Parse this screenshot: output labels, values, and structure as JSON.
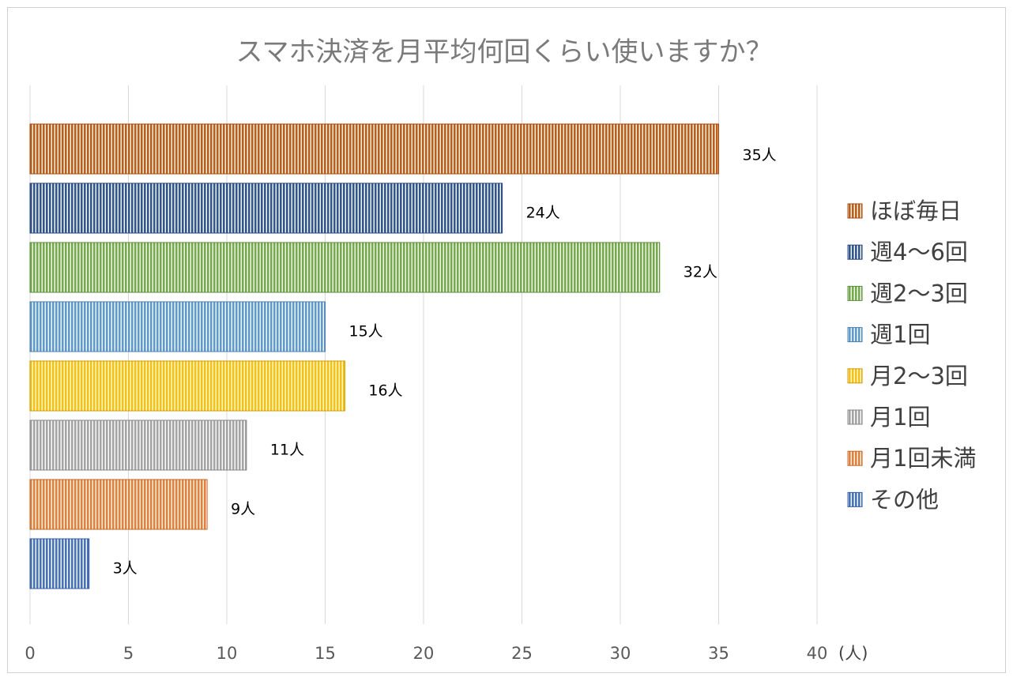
{
  "chart_data": {
    "type": "bar",
    "orientation": "horizontal",
    "title": "スマホ決済を月平均何回くらい使いますか？",
    "unit_label": "(人)",
    "xlim": [
      0,
      40
    ],
    "xticks": [
      0,
      5,
      10,
      15,
      20,
      25,
      30,
      35,
      40
    ],
    "grid": true,
    "legend_position": "right",
    "bar_pattern": "vertical-stripes",
    "categories": [
      "ほぼ毎日",
      "週4～6回",
      "週2～3回",
      "週1回",
      "月2～3回",
      "月1回",
      "月1回未満",
      "その他"
    ],
    "values": [
      35,
      24,
      32,
      15,
      16,
      11,
      9,
      3
    ],
    "data_labels": [
      "35人",
      "24人",
      "32人",
      "15人",
      "16人",
      "11人",
      "9人",
      "3人"
    ],
    "colors": [
      "#C55A11",
      "#2F5597",
      "#70AD47",
      "#5B9BD5",
      "#FFC000",
      "#A5A5A5",
      "#ED7D31",
      "#4472C4"
    ]
  }
}
